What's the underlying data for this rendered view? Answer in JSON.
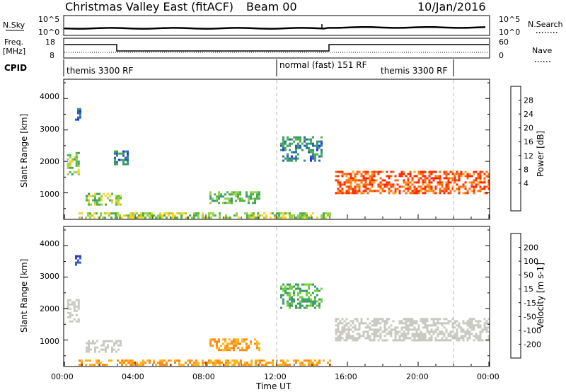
{
  "header": {
    "title": "Christmas Valley East (fitACF)",
    "beam": "Beam 00",
    "date": "10/Jan/2016"
  },
  "strips": {
    "nsky_label": "N.Sky",
    "nsearch_label": "N.Search",
    "left_ticks": [
      "10^5",
      "10^0"
    ],
    "right_ticks": [
      "10^5",
      "10^0"
    ],
    "freq_label_1": "Freq.",
    "freq_label_2": "[MHz]",
    "freq_ticks": [
      "18",
      "8"
    ],
    "nave_label": "Nave",
    "nave_ticks": [
      "60",
      "0"
    ],
    "cpid_label": "CPID",
    "cpid_segments": [
      {
        "label": "themis 3300 RF"
      },
      {
        "label": "normal (fast) 151 RF"
      },
      {
        "label": "themis 3300 RF"
      }
    ]
  },
  "axes": {
    "ylabel": "Slant Range [km]",
    "xlabel": "Time UT",
    "y_ticks": [
      "4000",
      "3000",
      "2000",
      "1000"
    ],
    "x_ticks": [
      "00:00",
      "04:00",
      "08:00",
      "12:00",
      "16:00",
      "20:00",
      "00:00"
    ]
  },
  "power_scale": {
    "label": "Power [dB]",
    "ticks": [
      "28",
      "24",
      "20",
      "16",
      "12",
      "8",
      "4"
    ],
    "colors": [
      "#1e2bff",
      "#2a5fb8",
      "#3a9870",
      "#49b24a",
      "#9ad043",
      "#ffd21f",
      "#ffa21a",
      "#ff6b10",
      "#ff2a00"
    ]
  },
  "velocity_scale": {
    "label": "Velocity [m s-1]",
    "ticks": [
      "200",
      "100",
      "50",
      "15",
      "-15",
      "-50",
      "-100",
      "-200"
    ],
    "colors": [
      "#2e3ad8",
      "#2b62b6",
      "#3f9a6a",
      "#6fd23f",
      "#c9c9c2",
      "#ffb21a",
      "#ff8a12",
      "#ff5210",
      "#ff1e00"
    ]
  },
  "chart_data": {
    "type": "heatmap",
    "x_range_hours": [
      0,
      24
    ],
    "y_range_km": [
      180,
      4500
    ],
    "power_regions": [
      {
        "t0": 0.15,
        "t1": 0.8,
        "r0": 1600,
        "r1": 2300,
        "db": 14
      },
      {
        "t0": 0.6,
        "t1": 0.9,
        "r0": 3300,
        "r1": 3700,
        "db": 8
      },
      {
        "t0": 1.2,
        "t1": 3.2,
        "r0": 650,
        "r1": 1000,
        "db": 14
      },
      {
        "t0": 2.8,
        "t1": 3.6,
        "r0": 1900,
        "r1": 2350,
        "db": 8
      },
      {
        "t0": 8.2,
        "t1": 11.0,
        "r0": 700,
        "r1": 1050,
        "db": 12
      },
      {
        "t0": 12.2,
        "t1": 14.5,
        "r0": 2000,
        "r1": 2800,
        "db": 8
      },
      {
        "t0": 15.3,
        "t1": 24.0,
        "r0": 1000,
        "r1": 1700,
        "db": 28
      },
      {
        "t0": 0.8,
        "t1": 15.0,
        "r0": 220,
        "r1": 380,
        "db": 16
      }
    ],
    "velocity_regions": [
      {
        "t0": 0.15,
        "t1": 0.8,
        "r0": 1600,
        "r1": 2300,
        "v": 0
      },
      {
        "t0": 0.6,
        "t1": 0.9,
        "r0": 3300,
        "r1": 3700,
        "v": 200
      },
      {
        "t0": 1.2,
        "t1": 3.2,
        "r0": 650,
        "r1": 1000,
        "v": 0
      },
      {
        "t0": 8.2,
        "t1": 11.0,
        "r0": 700,
        "r1": 1050,
        "v": -50
      },
      {
        "t0": 12.2,
        "t1": 14.5,
        "r0": 2000,
        "r1": 2800,
        "v": 50
      },
      {
        "t0": 15.3,
        "t1": 24.0,
        "r0": 1000,
        "r1": 1700,
        "v": 0
      },
      {
        "t0": 0.8,
        "t1": 15.0,
        "r0": 220,
        "r1": 380,
        "v": -50
      }
    ]
  }
}
